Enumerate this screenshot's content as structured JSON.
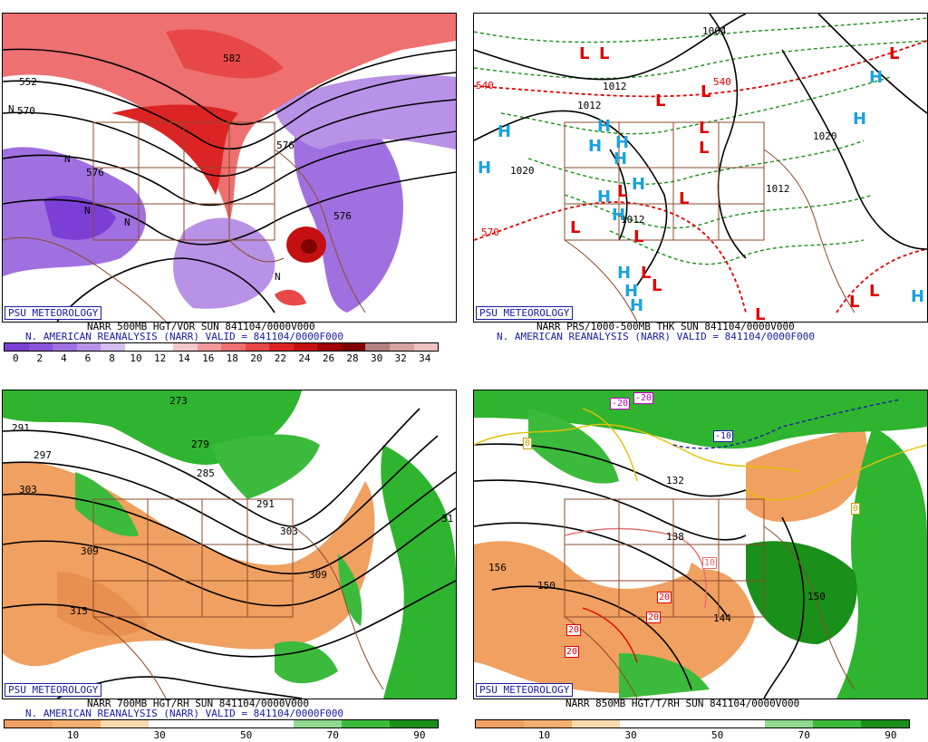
{
  "branding": "PSU METEOROLOGY",
  "panels": {
    "vor500": {
      "title_line": "NARR 500MB HGT/VOR SUN 841104/0000V000",
      "valid_line": "N. AMERICAN REANALYSIS (NARR) VALID = 841104/0000F000",
      "colorbar": {
        "ticks": [
          "0",
          "2",
          "4",
          "6",
          "8",
          "10",
          "12",
          "14",
          "16",
          "18",
          "20",
          "22",
          "24",
          "26",
          "28",
          "30",
          "32",
          "34"
        ],
        "colors": [
          "#7b3fd6",
          "#8d52db",
          "#a070e0",
          "#b892e6",
          "#d2bdee",
          "#ffffff",
          "#ffffff",
          "#f5c9c9",
          "#f29a9a",
          "#ee7070",
          "#e84848",
          "#dc2424",
          "#c41010",
          "#a00000",
          "#800000",
          "#b08080",
          "#d6a2a2",
          "#f0c2c2"
        ]
      },
      "contour_labels": [
        "552",
        "570",
        "576",
        "576",
        "576",
        "582",
        "N",
        "N",
        "N",
        "N",
        "N"
      ]
    },
    "thk": {
      "title_line": "NARR PRS/1000-500MB THK SUN 841104/0000V000",
      "valid_line": "N. AMERICAN REANALYSIS (NARR) VALID = 841104/0000F000",
      "contour_labels": [
        "540",
        "540",
        "570",
        "1004",
        "1012",
        "1012",
        "1020",
        "1020",
        "1012",
        "1012"
      ]
    },
    "rh700": {
      "title_line": "NARR 700MB HGT/RH SUN 841104/0000V000",
      "valid_line": "N. AMERICAN REANALYSIS (NARR) VALID = 841104/0000F000",
      "colorbar": {
        "ticks": [
          "10",
          "30",
          "50",
          "70",
          "90"
        ],
        "colors": [
          "#f0a060",
          "#f5b070",
          "#fbdab0",
          "#ffffff",
          "#ffffff",
          "#ffffff",
          "#8fd88f",
          "#3cba3c",
          "#1a8f1a"
        ]
      },
      "contour_labels": [
        "291",
        "297",
        "303",
        "309",
        "315",
        "279",
        "285",
        "291",
        "303",
        "309",
        "273",
        "31"
      ]
    },
    "t850": {
      "title_line": "NARR 850MB HGT/T/RH SUN 841104/0000V000",
      "colorbar": {
        "ticks": [
          "10",
          "30",
          "50",
          "70",
          "90"
        ],
        "colors": [
          "#f0a060",
          "#f5b070",
          "#fbdab0",
          "#ffffff",
          "#ffffff",
          "#ffffff",
          "#8fd88f",
          "#3cba3c",
          "#1a8f1a"
        ]
      },
      "contour_labels": [
        "156",
        "150",
        "132",
        "138",
        "144",
        "150"
      ],
      "temp_labels": [
        "-20",
        "-20",
        "-10",
        "0",
        "0",
        "10",
        "20",
        "20",
        "20",
        "20"
      ]
    }
  },
  "colors": {
    "map_lines": "#8b4a2b",
    "vor_purple": "#8a55dd",
    "vor_red": "#e05050",
    "rh_green": "#2fb42f",
    "rh_orange": "#f0a060",
    "label_blue": "#1a1aa8",
    "low_red": "#e00000",
    "high_blue": "#19a3e0"
  }
}
